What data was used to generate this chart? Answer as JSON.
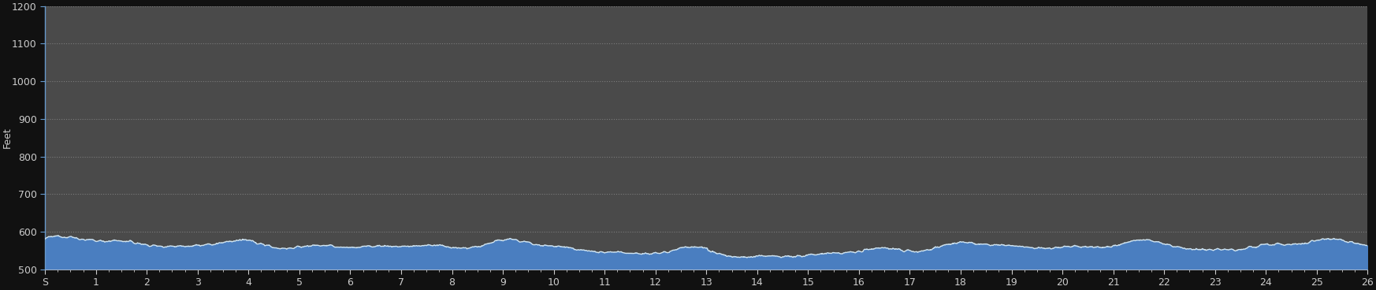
{
  "ylabel": "Feet",
  "xlabel_ticks": [
    "S",
    "1",
    "2",
    "3",
    "4",
    "5",
    "6",
    "7",
    "8",
    "9",
    "10",
    "11",
    "12",
    "13",
    "14",
    "15",
    "16",
    "17",
    "18",
    "19",
    "20",
    "21",
    "22",
    "23",
    "24",
    "25",
    "26"
  ],
  "xlim": [
    0,
    26
  ],
  "ylim": [
    500,
    1200
  ],
  "yticks": [
    500,
    600,
    700,
    800,
    900,
    1000,
    1100,
    1200
  ],
  "ytick_labels": [
    "500",
    "600",
    "700",
    "800",
    "900",
    "1000",
    "1100",
    "1200"
  ],
  "background_color": "#4a4a4a",
  "outer_background": "#111111",
  "fill_color": "#4a7ec0",
  "line_color": "#d0e4f0",
  "grid_color": "#888888",
  "text_color": "#cccccc",
  "spine_color": "#6699cc",
  "figsize": [
    17.46,
    3.68
  ],
  "dpi": 100
}
